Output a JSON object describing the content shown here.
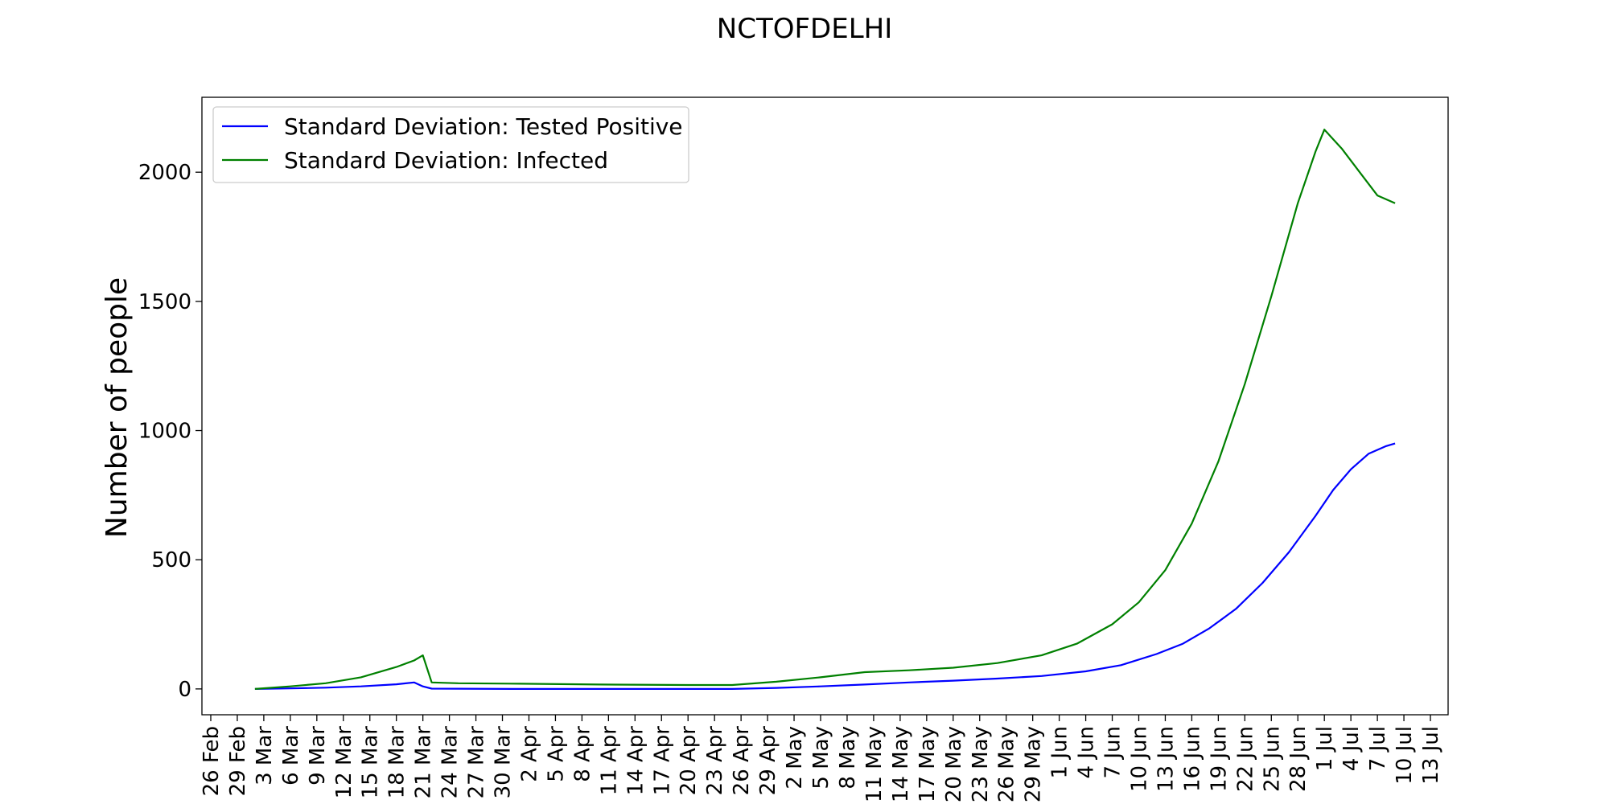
{
  "chart_data": {
    "type": "line",
    "title": "NCTOFDELHI",
    "xlabel": "",
    "ylabel": "Number of people",
    "ylim": [
      -100,
      2290
    ],
    "xlim": [
      "2020-02-25",
      "2020-07-15"
    ],
    "yticks": [
      0,
      500,
      1000,
      1500,
      2000
    ],
    "xtick_labels": [
      "26 Feb",
      "29 Feb",
      "3 Mar",
      "6 Mar",
      "9 Mar",
      "12 Mar",
      "15 Mar",
      "18 Mar",
      "21 Mar",
      "24 Mar",
      "27 Mar",
      "30 Mar",
      "2 Apr",
      "5 Apr",
      "8 Apr",
      "11 Apr",
      "14 Apr",
      "17 Apr",
      "20 Apr",
      "23 Apr",
      "26 Apr",
      "29 Apr",
      "2 May",
      "5 May",
      "8 May",
      "11 May",
      "14 May",
      "17 May",
      "20 May",
      "23 May",
      "26 May",
      "29 May",
      "1 Jun",
      "4 Jun",
      "7 Jun",
      "10 Jun",
      "13 Jun",
      "16 Jun",
      "19 Jun",
      "22 Jun",
      "25 Jun",
      "28 Jun",
      "1 Jul",
      "4 Jul",
      "7 Jul",
      "10 Jul",
      "13 Jul"
    ],
    "xtick_dates": [
      "2020-02-26",
      "2020-02-29",
      "2020-03-03",
      "2020-03-06",
      "2020-03-09",
      "2020-03-12",
      "2020-03-15",
      "2020-03-18",
      "2020-03-21",
      "2020-03-24",
      "2020-03-27",
      "2020-03-30",
      "2020-04-02",
      "2020-04-05",
      "2020-04-08",
      "2020-04-11",
      "2020-04-14",
      "2020-04-17",
      "2020-04-20",
      "2020-04-23",
      "2020-04-26",
      "2020-04-29",
      "2020-05-02",
      "2020-05-05",
      "2020-05-08",
      "2020-05-11",
      "2020-05-14",
      "2020-05-17",
      "2020-05-20",
      "2020-05-23",
      "2020-05-26",
      "2020-05-29",
      "2020-06-01",
      "2020-06-04",
      "2020-06-07",
      "2020-06-10",
      "2020-06-13",
      "2020-06-16",
      "2020-06-19",
      "2020-06-22",
      "2020-06-25",
      "2020-06-28",
      "2020-07-01",
      "2020-07-04",
      "2020-07-07",
      "2020-07-10",
      "2020-07-13"
    ],
    "legend_position": "top-left",
    "grid": false,
    "series": [
      {
        "name": "Standard Deviation: Tested Positive",
        "color": "#0000ff",
        "points": [
          [
            "2020-03-02",
            0
          ],
          [
            "2020-03-06",
            2
          ],
          [
            "2020-03-10",
            5
          ],
          [
            "2020-03-14",
            10
          ],
          [
            "2020-03-18",
            18
          ],
          [
            "2020-03-20",
            25
          ],
          [
            "2020-03-21",
            10
          ],
          [
            "2020-03-22",
            1
          ],
          [
            "2020-04-01",
            0
          ],
          [
            "2020-04-10",
            0
          ],
          [
            "2020-04-20",
            0
          ],
          [
            "2020-04-25",
            0
          ],
          [
            "2020-04-30",
            4
          ],
          [
            "2020-05-05",
            10
          ],
          [
            "2020-05-10",
            17
          ],
          [
            "2020-05-15",
            25
          ],
          [
            "2020-05-20",
            32
          ],
          [
            "2020-05-25",
            40
          ],
          [
            "2020-05-30",
            50
          ],
          [
            "2020-06-04",
            68
          ],
          [
            "2020-06-08",
            92
          ],
          [
            "2020-06-12",
            135
          ],
          [
            "2020-06-15",
            175
          ],
          [
            "2020-06-18",
            235
          ],
          [
            "2020-06-21",
            310
          ],
          [
            "2020-06-24",
            410
          ],
          [
            "2020-06-27",
            530
          ],
          [
            "2020-06-30",
            670
          ],
          [
            "2020-07-02",
            770
          ],
          [
            "2020-07-04",
            850
          ],
          [
            "2020-07-06",
            910
          ],
          [
            "2020-07-08",
            940
          ],
          [
            "2020-07-09",
            950
          ]
        ]
      },
      {
        "name": "Standard Deviation: Infected",
        "color": "#008000",
        "points": [
          [
            "2020-03-02",
            0
          ],
          [
            "2020-03-06",
            10
          ],
          [
            "2020-03-10",
            22
          ],
          [
            "2020-03-14",
            45
          ],
          [
            "2020-03-18",
            85
          ],
          [
            "2020-03-20",
            110
          ],
          [
            "2020-03-21",
            130
          ],
          [
            "2020-03-22",
            25
          ],
          [
            "2020-03-25",
            22
          ],
          [
            "2020-04-01",
            20
          ],
          [
            "2020-04-10",
            17
          ],
          [
            "2020-04-20",
            15
          ],
          [
            "2020-04-25",
            15
          ],
          [
            "2020-04-30",
            28
          ],
          [
            "2020-05-05",
            45
          ],
          [
            "2020-05-10",
            65
          ],
          [
            "2020-05-15",
            72
          ],
          [
            "2020-05-20",
            82
          ],
          [
            "2020-05-25",
            100
          ],
          [
            "2020-05-30",
            130
          ],
          [
            "2020-06-03",
            175
          ],
          [
            "2020-06-07",
            250
          ],
          [
            "2020-06-10",
            335
          ],
          [
            "2020-06-13",
            460
          ],
          [
            "2020-06-16",
            640
          ],
          [
            "2020-06-19",
            880
          ],
          [
            "2020-06-22",
            1180
          ],
          [
            "2020-06-25",
            1520
          ],
          [
            "2020-06-28",
            1880
          ],
          [
            "2020-06-30",
            2080
          ],
          [
            "2020-07-01",
            2165
          ],
          [
            "2020-07-03",
            2090
          ],
          [
            "2020-07-05",
            2000
          ],
          [
            "2020-07-07",
            1910
          ],
          [
            "2020-07-09",
            1880
          ]
        ]
      }
    ]
  }
}
